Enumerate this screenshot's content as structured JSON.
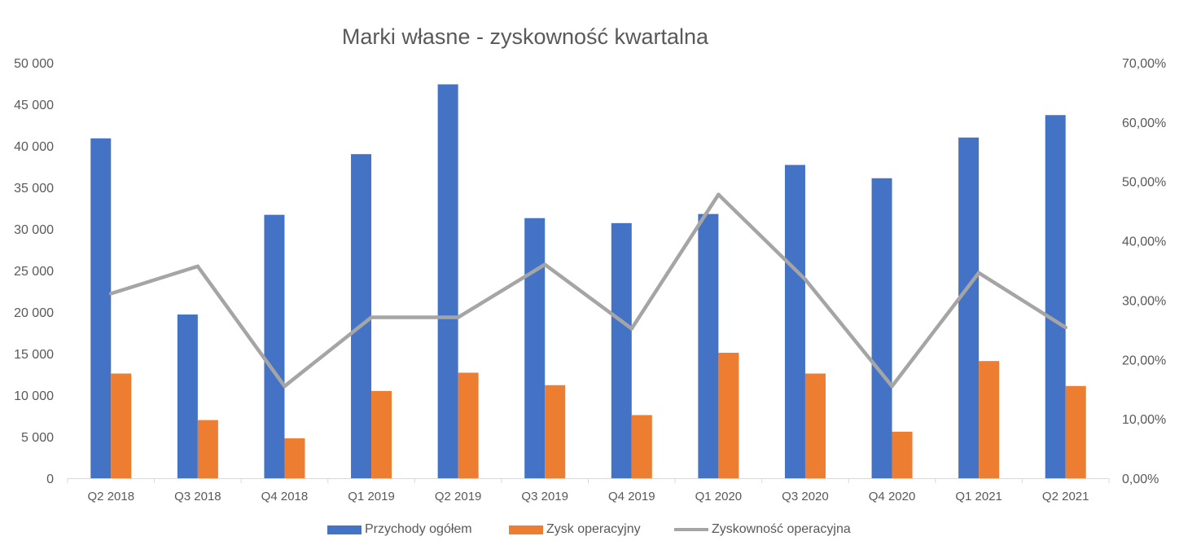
{
  "chart_data": {
    "type": "bar",
    "title": "Marki własne - zyskowność kwartalna",
    "categories": [
      "Q2 2018",
      "Q3 2018",
      "Q4 2018",
      "Q1 2019",
      "Q2 2019",
      "Q3 2019",
      "Q4 2019",
      "Q1 2020",
      "Q3 2020",
      "Q4 2020",
      "Q1 2021",
      "Q2 2021"
    ],
    "y_ticks": [
      "0",
      "5 000",
      "10 000",
      "15 000",
      "20 000",
      "25 000",
      "30 000",
      "35 000",
      "40 000",
      "45 000",
      "50 000"
    ],
    "y2_ticks": [
      "0,00%",
      "10,00%",
      "20,00%",
      "30,00%",
      "40,00%",
      "50,00%",
      "60,00%",
      "70,00%"
    ],
    "ylim": [
      0,
      50000
    ],
    "y2lim": [
      0,
      0.7
    ],
    "grid": false,
    "legend_position": "bottom",
    "series": [
      {
        "name": "Przychody ogółem",
        "type": "bar",
        "axis": "left",
        "color": "#4472C4",
        "values": [
          40900,
          19700,
          31700,
          39000,
          47400,
          31300,
          30700,
          31800,
          37700,
          36100,
          41000,
          43700
        ]
      },
      {
        "name": "Zysk operacyjny",
        "type": "bar",
        "axis": "left",
        "color": "#ED7D31",
        "values": [
          12600,
          7000,
          4800,
          10500,
          12700,
          11200,
          7600,
          15100,
          12600,
          5600,
          14100,
          11100
        ]
      },
      {
        "name": "Zyskowność operacyjna",
        "type": "line",
        "axis": "right",
        "color": "#A5A5A5",
        "values": [
          0.311,
          0.357,
          0.155,
          0.271,
          0.271,
          0.36,
          0.252,
          0.478,
          0.335,
          0.155,
          0.346,
          0.254
        ]
      }
    ]
  }
}
